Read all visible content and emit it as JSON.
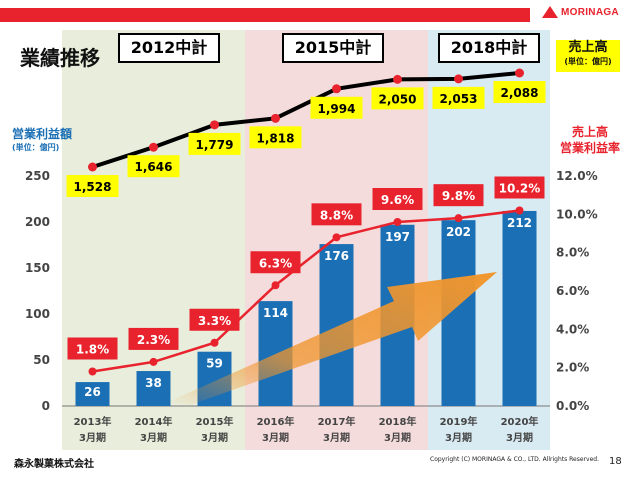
{
  "company_logo": "MORINAGA",
  "title": "業績推移",
  "plan_labels": [
    "2012中計",
    "2015中計",
    "2018中計"
  ],
  "sales_label": {
    "main": "売上高",
    "unit": "(単位：億円)"
  },
  "profit_label": {
    "main": "営業利益額",
    "unit": "(単位：億円)"
  },
  "rate_label": {
    "line1": "売上高",
    "line2": "営業利益率"
  },
  "footer": {
    "company": "森永製菓株式会社",
    "copyright": "Copyright (C) MORINAGA & CO., LTD. Allrights Reserved.",
    "page": "18"
  },
  "colors": {
    "accent_red": "#e8232d",
    "bar_blue": "#1a6fb5",
    "plan_2012": "#e8eedb",
    "plan_2015": "#f5dcdc",
    "plan_2018": "#d8eaf2",
    "label_yellow": "#ffff00",
    "arrow_orange": "#f0962e"
  },
  "chart_data": {
    "type": "bar",
    "categories": [
      [
        "2013年",
        "3月期"
      ],
      [
        "2014年",
        "3月期"
      ],
      [
        "2015年",
        "3月期"
      ],
      [
        "2016年",
        "3月期"
      ],
      [
        "2017年",
        "3月期"
      ],
      [
        "2018年",
        "3月期"
      ],
      [
        "2019年",
        "3月期"
      ],
      [
        "2020年",
        "3月期"
      ]
    ],
    "series": [
      {
        "name": "営業利益額",
        "type": "bar",
        "axis": "left",
        "values": [
          26,
          38,
          59,
          114,
          176,
          197,
          202,
          212
        ]
      },
      {
        "name": "営業利益率",
        "type": "line",
        "axis": "right",
        "values": [
          1.8,
          2.3,
          3.3,
          6.3,
          8.8,
          9.6,
          9.8,
          10.2
        ],
        "labels": [
          "1.8%",
          "2.3%",
          "3.3%",
          "6.3%",
          "8.8%",
          "9.6%",
          "9.8%",
          "10.2%"
        ]
      },
      {
        "name": "売上高",
        "type": "line",
        "axis": "top",
        "values": [
          1528,
          1646,
          1779,
          1818,
          1994,
          2050,
          2053,
          2088
        ],
        "labels": [
          "1,528",
          "1,646",
          "1,779",
          "1,818",
          "1,994",
          "2,050",
          "2,053",
          "2,088"
        ]
      }
    ],
    "left_axis": {
      "ylim": [
        0,
        250
      ],
      "ticks": [
        "0",
        "50",
        "100",
        "150",
        "200",
        "250"
      ]
    },
    "right_axis": {
      "ylim": [
        0,
        12
      ],
      "ticks": [
        "0.0%",
        "2.0%",
        "4.0%",
        "6.0%",
        "8.0%",
        "10.0%",
        "12.0%"
      ]
    },
    "plan_periods": [
      {
        "label": "2012中計",
        "start": 0,
        "end": 2
      },
      {
        "label": "2015中計",
        "start": 3,
        "end": 5
      },
      {
        "label": "2018中計",
        "start": 6,
        "end": 7
      }
    ]
  }
}
